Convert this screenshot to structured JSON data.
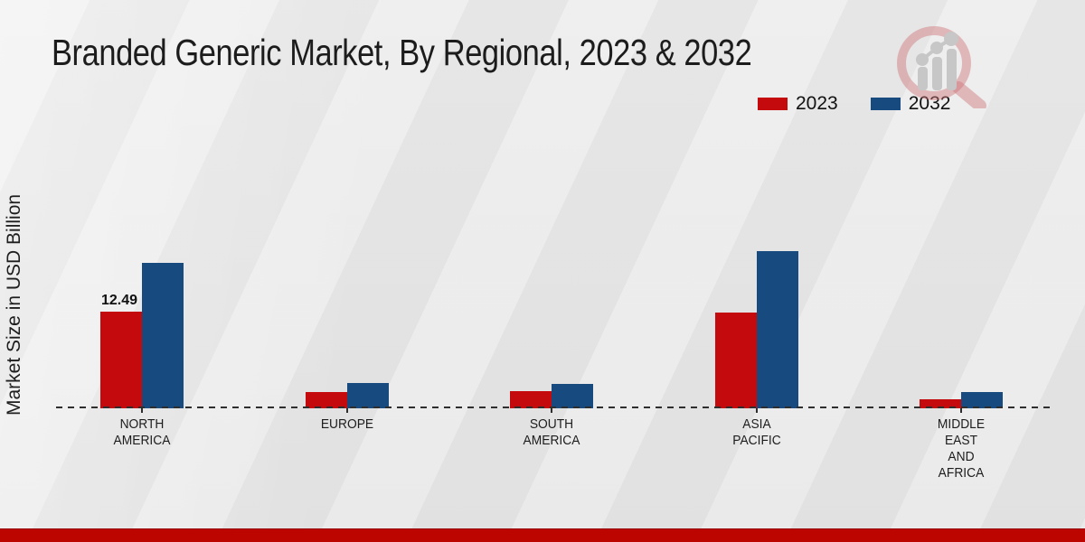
{
  "title": "Branded Generic Market, By Regional, 2023 & 2032",
  "legend": [
    {
      "label": "2023",
      "color": "#c40a0c"
    },
    {
      "label": "2032",
      "color": "#174b80"
    }
  ],
  "watermark": {
    "icon": "magnifier-bar-chart-logo"
  },
  "footer": {
    "band_color": "#bd0500"
  },
  "chart_data": {
    "type": "bar",
    "title": "Branded Generic Market, By Regional, 2023 & 2032",
    "xlabel": "",
    "ylabel": "Market Size in USD Billion",
    "categories": [
      "North America",
      "Europe",
      "South America",
      "Asia Pacific",
      "Middle East and Africa"
    ],
    "category_label_lines": [
      [
        "NORTH",
        "AMERICA"
      ],
      [
        "EUROPE"
      ],
      [
        "SOUTH",
        "AMERICA"
      ],
      [
        "ASIA",
        "PACIFIC"
      ],
      [
        "MIDDLE",
        "EAST",
        "AND",
        "AFRICA"
      ]
    ],
    "series": [
      {
        "name": "2023",
        "color": "#c40a0c",
        "values": [
          12.49,
          2.1,
          2.2,
          12.4,
          1.2
        ]
      },
      {
        "name": "2032",
        "color": "#174b80",
        "values": [
          18.8,
          3.3,
          3.2,
          20.3,
          2.1
        ]
      }
    ],
    "data_labels": [
      {
        "series_index": 0,
        "category_index": 0,
        "text": "12.49"
      }
    ],
    "ylim": [
      0,
      22
    ],
    "grid": false,
    "axis_line_style": "dashed",
    "legend_position": "top-right"
  }
}
